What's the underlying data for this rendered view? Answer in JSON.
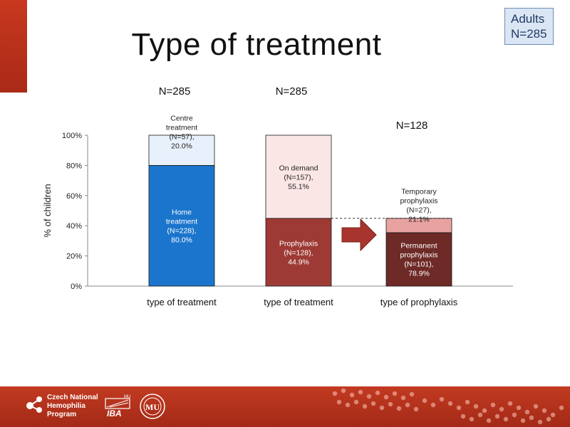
{
  "slide": {
    "title": "Type of treatment",
    "adults_box": {
      "line1": "Adults",
      "line2": "N=285"
    }
  },
  "footer": {
    "org_lines": [
      "Czech National",
      "Hemophilia",
      "Program"
    ],
    "iba_label": "IBA",
    "mu_superscript": "MU",
    "mu_label": "MU"
  },
  "chart_data": {
    "type": "bar",
    "stacked": true,
    "ylabel": "% of children",
    "ylim": [
      0,
      100
    ],
    "yticks": [
      "0%",
      "20%",
      "40%",
      "60%",
      "80%",
      "100%"
    ],
    "grid": false,
    "bars": [
      {
        "category": "type of treatment",
        "n_label": "N=285",
        "total_percent": 100,
        "segments": [
          {
            "lines": [
              "Home",
              "treatment",
              "(N=228),",
              "80.0%"
            ],
            "value": 80.0,
            "color": "#1b75cc"
          },
          {
            "lines": [
              "Centre",
              "treatment",
              "(N=57),",
              "20.0%"
            ],
            "value": 20.0,
            "color": "#e8f1fb"
          }
        ]
      },
      {
        "category": "type of treatment",
        "n_label": "N=285",
        "total_percent": 100,
        "segments": [
          {
            "lines": [
              "Prophylaxis",
              "(N=128),",
              "44.9%"
            ],
            "value": 44.9,
            "color": "#9e3a35"
          },
          {
            "lines": [
              "On demand",
              "(N=157),",
              "55.1%"
            ],
            "value": 55.1,
            "color": "#fbe6e6"
          }
        ]
      },
      {
        "category": "type of prophylaxis",
        "n_label": "N=128",
        "total_percent": 44.9,
        "segments": [
          {
            "lines": [
              "Permanent",
              "prophylaxis",
              "(N=101),",
              "78.9%"
            ],
            "value": 78.9,
            "color": "#6e2a27"
          },
          {
            "lines": [
              "Temporary",
              "prophylaxis",
              "(N=27),",
              "21.1%"
            ],
            "value": 21.1,
            "color": "#e8a3a0"
          }
        ]
      }
    ],
    "arrow_color": "#a8342e",
    "dashed_line_color": "#333333"
  }
}
